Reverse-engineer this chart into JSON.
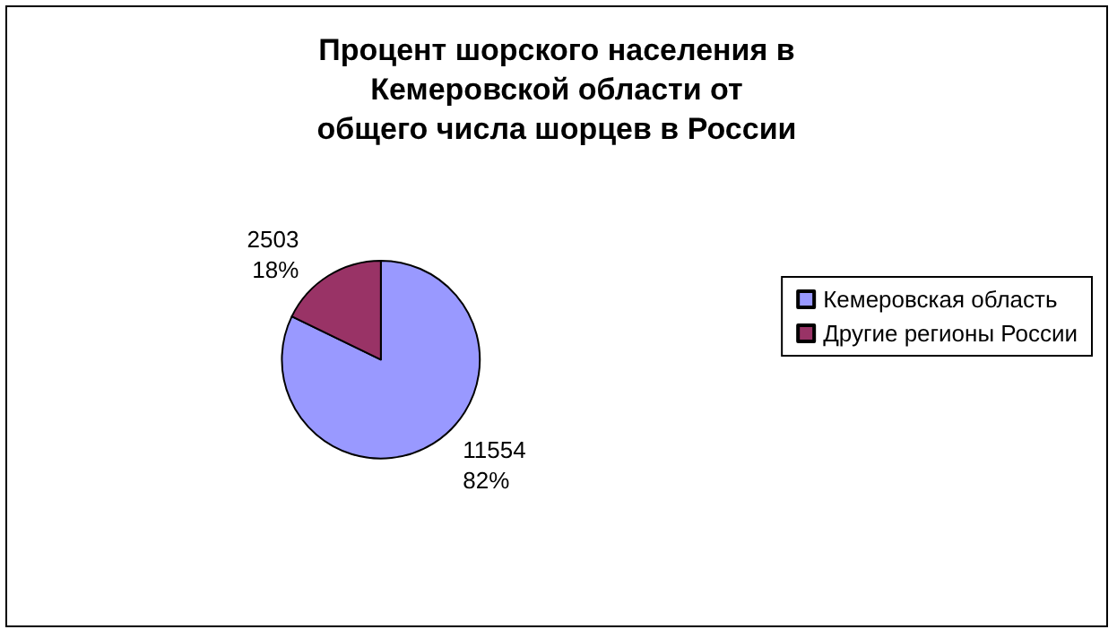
{
  "chart_data": {
    "type": "pie",
    "title": "Процент шорского населения в Кемеровской области от общего числа шорцев в России",
    "categories": [
      "Кемеровская область",
      "Другие регионы России"
    ],
    "values": [
      11554,
      2503
    ],
    "colors": [
      "#9999ff",
      "#993366"
    ],
    "value_labels": [
      "11554\n82%",
      "2503\n18%"
    ],
    "legend": "right"
  }
}
